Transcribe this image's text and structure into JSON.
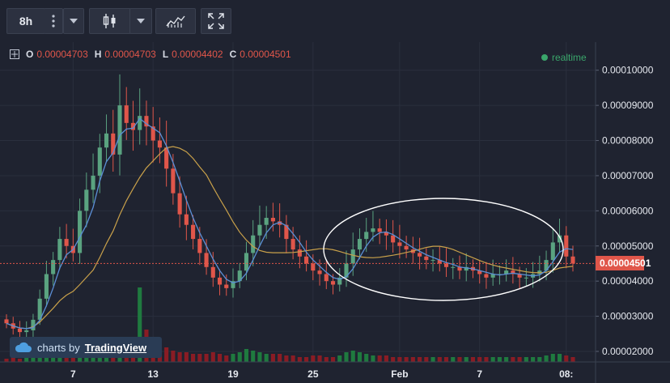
{
  "toolbar": {
    "interval_label": "8h",
    "menu_icon": "vertical-dots-icon",
    "interval_dropdown_icon": "chevron-down-icon",
    "chart_type_icon": "candlestick-icon",
    "chart_type_dropdown_icon": "chevron-down-icon",
    "indicators_icon": "indicators-icon",
    "fullscreen_icon": "fullscreen-icon"
  },
  "legend": {
    "o_key": "O",
    "o_value": "0.00004703",
    "h_key": "H",
    "h_value": "0.00004703",
    "l_key": "L",
    "l_value": "0.00004402",
    "c_key": "C",
    "c_value": "0.00004501",
    "crosshair_icon": "crosshair-icon"
  },
  "realtime_label": "realtime",
  "watermark": {
    "prefix": "charts by",
    "brand": "TradingView",
    "icon": "cloud-icon"
  },
  "colors": {
    "up": "#5aa380",
    "down": "#e0564a",
    "volume_up": "#1f7a3f",
    "volume_down": "#8a1c24",
    "ma_fast": "#5b8fd6",
    "ma_slow": "#c9a14a",
    "last_price": "#e0564a",
    "background": "#1f2330"
  },
  "chart_data": {
    "type": "candlestick",
    "price_axis_labels": [
      "0.00010000",
      "0.00009000",
      "0.00008000",
      "0.00007000",
      "0.00006000",
      "0.00005000",
      "0.00004000",
      "0.00003000",
      "0.00002000"
    ],
    "time_axis_labels": [
      "7",
      "13",
      "19",
      "25",
      "Feb",
      "7",
      "08:"
    ],
    "last_price": "0.00004501",
    "y_range": [
      1.7e-05,
      0.000108
    ],
    "series": [
      {
        "name": "price",
        "close": [
          2.8e-05,
          2.65e-05,
          2.55e-05,
          2.6e-05,
          2.9e-05,
          3.5e-05,
          4.2e-05,
          4.6e-05,
          5.2e-05,
          5e-05,
          4.8e-05,
          6e-05,
          6.6e-05,
          7e-05,
          7.8e-05,
          8.2e-05,
          7.6e-05,
          9e-05,
          8.5e-05,
          8.3e-05,
          8.7e-05,
          8.4e-05,
          8e-05,
          7.8e-05,
          7.2e-05,
          6.5e-05,
          5.9e-05,
          5.6e-05,
          5.2e-05,
          4.8e-05,
          4.4e-05,
          4.1e-05,
          3.9e-05,
          3.8e-05,
          4e-05,
          4.3e-05,
          4.8e-05,
          5.3e-05,
          5.6e-05,
          5.8e-05,
          5.7e-05,
          5.6e-05,
          5.2e-05,
          4.9e-05,
          4.7e-05,
          4.5e-05,
          4.3e-05,
          4.2e-05,
          4e-05,
          3.9e-05,
          4.1e-05,
          4.5e-05,
          4.9e-05,
          5.2e-05,
          5.4e-05,
          5.5e-05,
          5.4e-05,
          5.3e-05,
          5.1e-05,
          5e-05,
          4.9e-05,
          4.8e-05,
          4.7e-05,
          4.6e-05,
          4.6e-05,
          4.5e-05,
          4.4e-05,
          4.4e-05,
          4.3e-05,
          4.4e-05,
          4.3e-05,
          4.2e-05,
          4.1e-05,
          4.2e-05,
          4.2e-05,
          4.3e-05,
          4.2e-05,
          4.1e-05,
          4.1e-05,
          4.2e-05,
          4.3e-05,
          4.6e-05,
          5.1e-05,
          5.3e-05,
          4.7e-05,
          4.5e-05
        ]
      },
      {
        "name": "ma_fast"
      },
      {
        "name": "ma_slow"
      },
      {
        "name": "volume"
      }
    ],
    "annotation": {
      "type": "ellipse"
    }
  }
}
